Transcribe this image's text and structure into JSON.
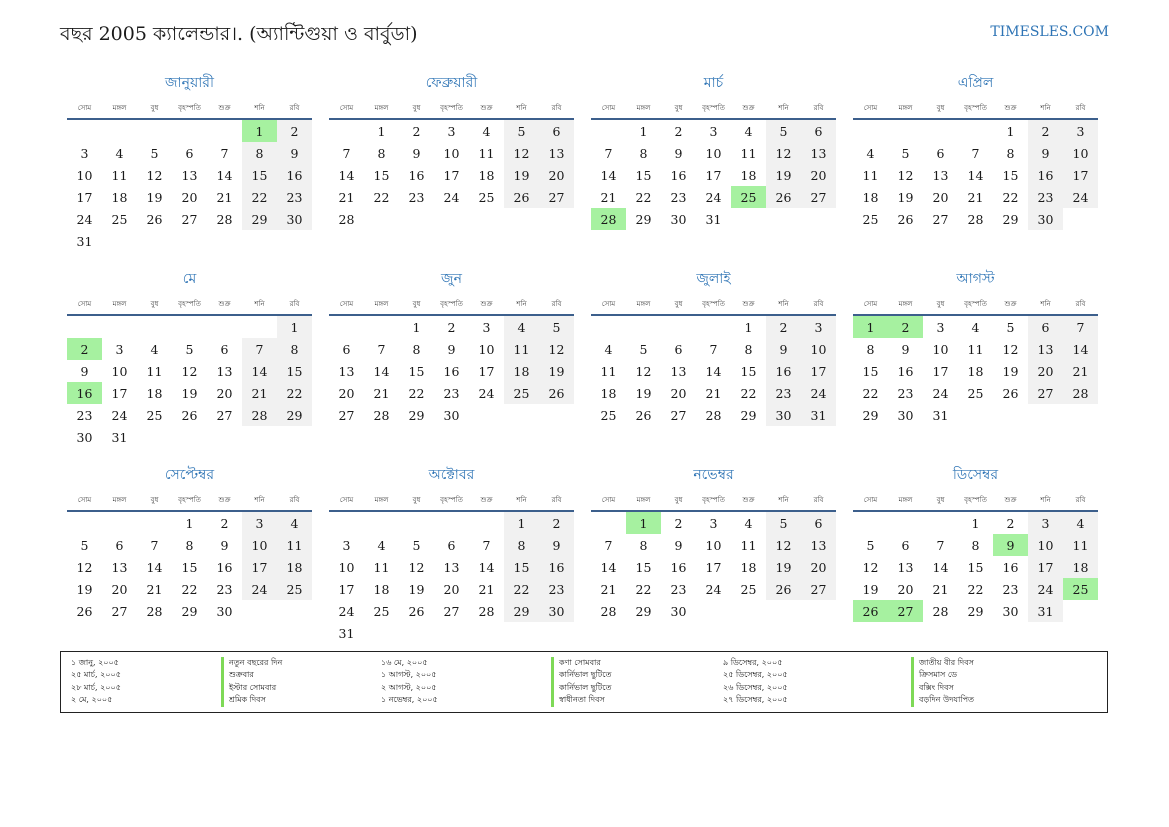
{
  "header": {
    "title": "বছর 2005 ক্যালেন্ডার।. (অ্যান্টিগুয়া ও বার্বুডা)",
    "site": "TIMESLES.COM"
  },
  "weekdays": [
    "সোম",
    "মঙ্গল",
    "বুধ",
    "বৃহস্পতি",
    "শুক্র",
    "শনি",
    "রবি"
  ],
  "months": [
    {
      "name": "জানুয়ারী",
      "offset": 5,
      "days": 31,
      "holidays": [
        1
      ]
    },
    {
      "name": "ফেব্রুয়ারী",
      "offset": 1,
      "days": 28,
      "holidays": []
    },
    {
      "name": "মার্চ",
      "offset": 1,
      "days": 31,
      "holidays": [
        25,
        28
      ]
    },
    {
      "name": "এপ্রিল",
      "offset": 4,
      "days": 30,
      "holidays": []
    },
    {
      "name": "মে",
      "offset": 6,
      "days": 31,
      "holidays": [
        2,
        16
      ]
    },
    {
      "name": "জুন",
      "offset": 2,
      "days": 30,
      "holidays": []
    },
    {
      "name": "জুলাই",
      "offset": 4,
      "days": 31,
      "holidays": []
    },
    {
      "name": "আগস্ট",
      "offset": 0,
      "days": 31,
      "holidays": [
        1,
        2
      ]
    },
    {
      "name": "সেপ্টেম্বর",
      "offset": 3,
      "days": 30,
      "holidays": []
    },
    {
      "name": "অক্টোবর",
      "offset": 5,
      "days": 31,
      "holidays": []
    },
    {
      "name": "নভেম্বর",
      "offset": 1,
      "days": 30,
      "holidays": [
        1
      ]
    },
    {
      "name": "ডিসেম্বর",
      "offset": 3,
      "days": 31,
      "holidays": [
        9,
        25,
        26,
        27
      ]
    }
  ],
  "holiday_list": [
    [
      {
        "date": "১ জানু, ২০০৫",
        "name": "নতুন বছরের দিন"
      },
      {
        "date": "২৫ মার্চ, ২০০৫",
        "name": "শুক্রবার"
      },
      {
        "date": "২৮ মার্চ, ২০০৫",
        "name": "ইস্টার সোমবার"
      },
      {
        "date": "২ মে, ২০০৫",
        "name": "শ্রমিক দিবস"
      }
    ],
    [
      {
        "date": "১৬ মে, ২০০৫",
        "name": "কণা সোমবার"
      },
      {
        "date": "১ আগস্ট, ২০০৫",
        "name": "কার্নিভাল ছুটিতে"
      },
      {
        "date": "২ আগস্ট, ২০০৫",
        "name": "কার্নিভাল ছুটিতে"
      },
      {
        "date": "১ নভেম্বর, ২০০৫",
        "name": "স্বাধীনতা দিবস"
      }
    ],
    [
      {
        "date": "৯ ডিসেম্বর, ২০০৫",
        "name": "জাতীয় বীর দিবস"
      },
      {
        "date": "২৫ ডিসেম্বর, ২০০৫",
        "name": "ক্রিসমাস ডে"
      },
      {
        "date": "২৬ ডিসেম্বর, ২০০৫",
        "name": "বক্সিং দিবস"
      },
      {
        "date": "২৭ ডিসেম্বর, ২০০৫",
        "name": "বড়দিন উদযাপিত"
      }
    ]
  ]
}
